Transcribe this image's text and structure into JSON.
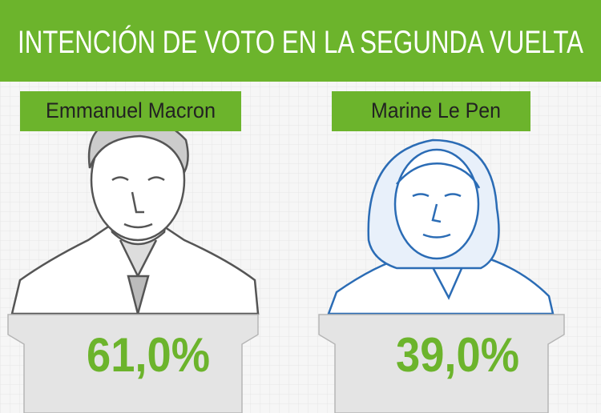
{
  "header": {
    "title": "INTENCIÓN DE VOTO EN LA SEGUNDA VUELTA"
  },
  "candidates": [
    {
      "name": "Emmanuel Macron",
      "result": "61,0%"
    },
    {
      "name": "Marine Le Pen",
      "result": "39,0%"
    }
  ]
}
